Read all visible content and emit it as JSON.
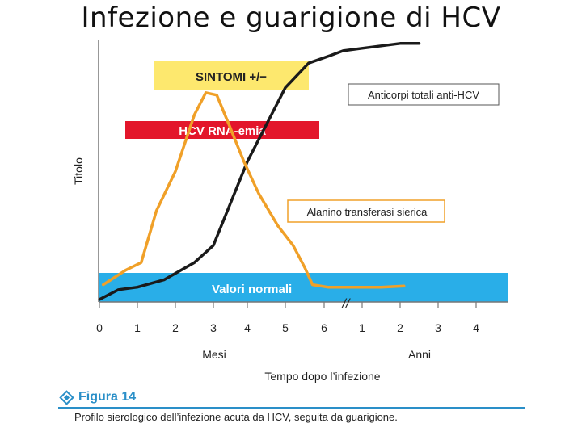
{
  "slide_title": "Infezione e guarigione di HCV",
  "colors": {
    "orange": "#f0a028",
    "black": "#1a1a1a",
    "blue_band": "#29aee8",
    "yellow_box": "#fde86e",
    "red_bar": "#e3162b",
    "caption_blue": "#2a8fc8"
  },
  "chart_data": {
    "type": "line",
    "ylabel": "Titolo",
    "xlabel": "Tempo dopo l’infezione",
    "x_ticks": [
      "0",
      "1",
      "2",
      "3",
      "4",
      "5",
      "6",
      "1",
      "2",
      "3",
      "4"
    ],
    "x_groups": [
      "Mesi",
      "Anni"
    ],
    "axis_break": "//",
    "x_scale": "months 0–6 then years 1–4 (broken axis)",
    "series": [
      {
        "name": "Anticorpi totali anti-HCV",
        "color": "#1a1a1a",
        "points": [
          [
            0,
            0.01
          ],
          [
            0.5,
            0.05
          ],
          [
            1,
            0.06
          ],
          [
            1.7,
            0.09
          ],
          [
            2.5,
            0.16
          ],
          [
            3,
            0.23
          ],
          [
            3.5,
            0.4
          ],
          [
            4,
            0.57
          ],
          [
            4.5,
            0.72
          ],
          [
            5,
            0.87
          ],
          [
            5.6,
            0.97
          ],
          [
            6.15,
            1.0
          ],
          [
            6.5,
            1.02
          ],
          [
            7,
            1.03
          ],
          [
            7.5,
            1.04
          ],
          [
            8,
            1.05
          ],
          [
            8.5,
            1.05
          ]
        ]
      },
      {
        "name": "Alanino transferasi sierica",
        "color": "#f0a028",
        "points": [
          [
            0.1,
            0.07
          ],
          [
            0.7,
            0.13
          ],
          [
            1.1,
            0.16
          ],
          [
            1.5,
            0.37
          ],
          [
            2,
            0.53
          ],
          [
            2.5,
            0.76
          ],
          [
            2.8,
            0.85
          ],
          [
            3.1,
            0.84
          ],
          [
            3.4,
            0.74
          ],
          [
            3.9,
            0.57
          ],
          [
            4.3,
            0.44
          ],
          [
            4.8,
            0.31
          ],
          [
            5.2,
            0.23
          ],
          [
            5.5,
            0.14
          ],
          [
            5.7,
            0.07
          ],
          [
            6.1,
            0.06
          ],
          [
            6.6,
            0.06
          ],
          [
            7.5,
            0.06
          ],
          [
            8.1,
            0.065
          ]
        ]
      }
    ],
    "annotations": [
      {
        "label": "SINTOMI +/−",
        "kind": "box",
        "x_range": [
          1.5,
          5.5
        ]
      },
      {
        "label": "HCV RNA-emia",
        "kind": "bar",
        "x_range": [
          0.7,
          5.9
        ]
      },
      {
        "label": "Valori normali",
        "kind": "band"
      },
      {
        "label": "Anticorpi totali anti-HCV",
        "kind": "callout"
      },
      {
        "label": "Alanino transferasi sierica",
        "kind": "callout"
      }
    ]
  },
  "figure": {
    "label": "Figura 14",
    "caption": "Profilo sierologico dell’infezione acuta da HCV, seguita da guarigione."
  }
}
